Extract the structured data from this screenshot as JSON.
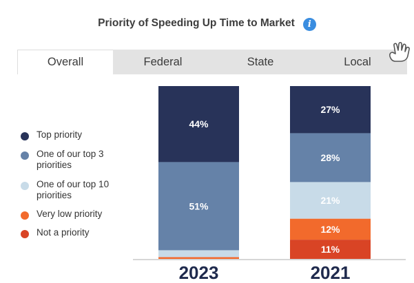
{
  "header": {
    "title": "Priority of Speeding Up Time to Market",
    "info_icon": "info-icon",
    "info_glyph": "i"
  },
  "tabs": [
    {
      "label": "Overall",
      "active": true
    },
    {
      "label": "Federal",
      "active": false
    },
    {
      "label": "State",
      "active": false
    },
    {
      "label": "Local",
      "active": false
    }
  ],
  "cursor_icon": "hand-pointer-icon",
  "colors": {
    "top_priority": "#283359",
    "top_3": "#6582a8",
    "top_10": "#c8dbe8",
    "very_low": "#f26a2c",
    "not_priority": "#d94425",
    "year_text": "#1f2a4d",
    "axis": "#c8c8c8"
  },
  "chart_data": {
    "type": "bar",
    "stacked": true,
    "categories": [
      "2023",
      "2021"
    ],
    "series": [
      {
        "name": "Top priority",
        "color": "#283359",
        "values": [
          44,
          27
        ],
        "labels": [
          "44%",
          "27%"
        ]
      },
      {
        "name": "One of our top 3 priorities",
        "color": "#6582a8",
        "values": [
          51,
          28
        ],
        "labels": [
          "51%",
          "28%"
        ]
      },
      {
        "name": "One of our top 10 priorities",
        "color": "#c8dbe8",
        "values": [
          4,
          21
        ],
        "labels": [
          "",
          "21%"
        ]
      },
      {
        "name": "Very low priority",
        "color": "#f26a2c",
        "values": [
          1,
          12
        ],
        "labels": [
          "",
          "12%"
        ]
      },
      {
        "name": "Not a priority",
        "color": "#d94425",
        "values": [
          0,
          11
        ],
        "labels": [
          "",
          "11%"
        ]
      }
    ],
    "legend": "left",
    "grid": false
  }
}
